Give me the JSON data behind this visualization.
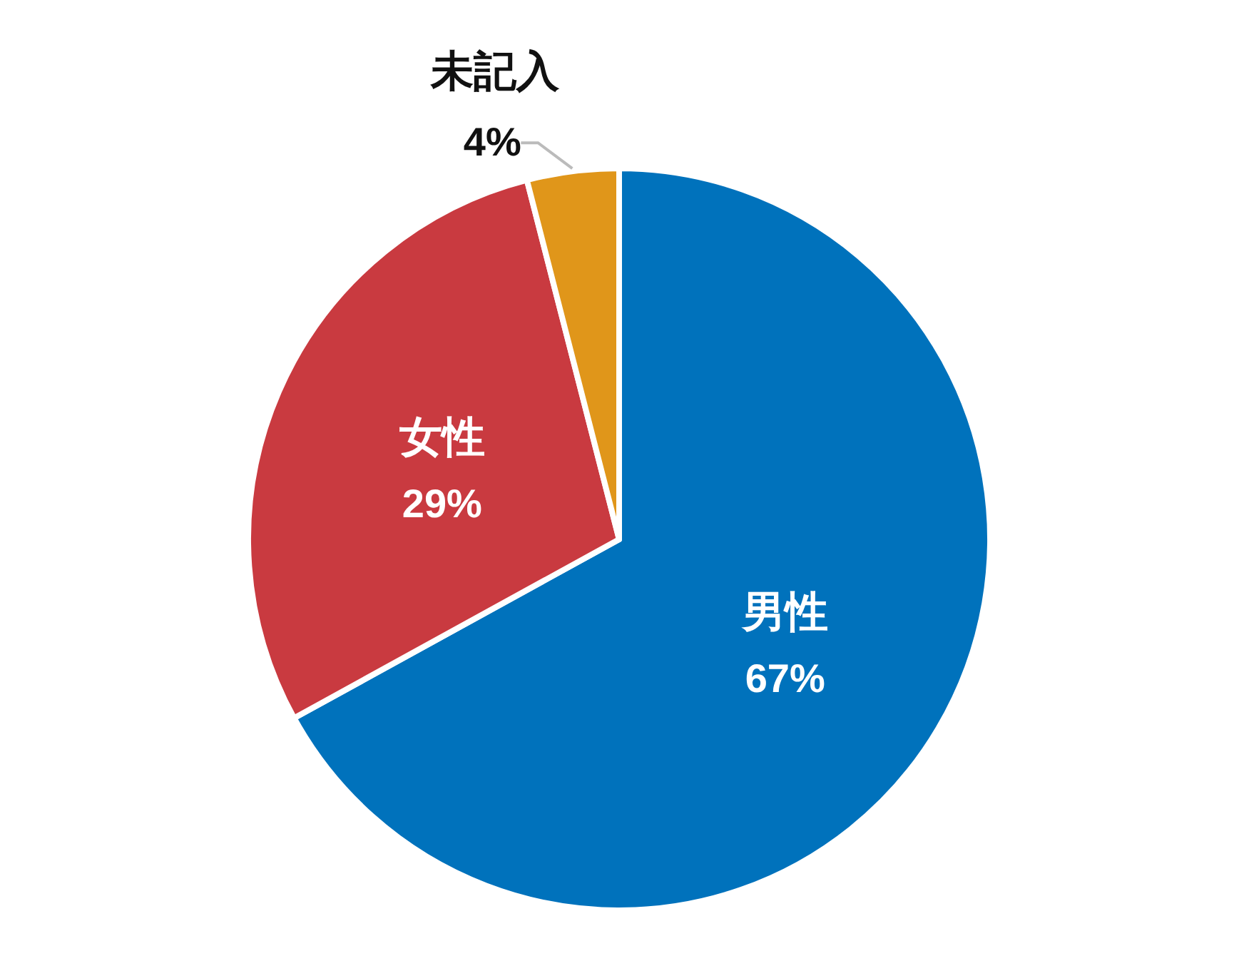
{
  "chart_data": {
    "type": "pie",
    "categories": [
      "男性",
      "女性",
      "未記入"
    ],
    "values": [
      67,
      29,
      4
    ],
    "value_labels": [
      "67%",
      "29%",
      "4%"
    ],
    "colors": [
      "#0072bc",
      "#c93a40",
      "#e0961a"
    ]
  }
}
